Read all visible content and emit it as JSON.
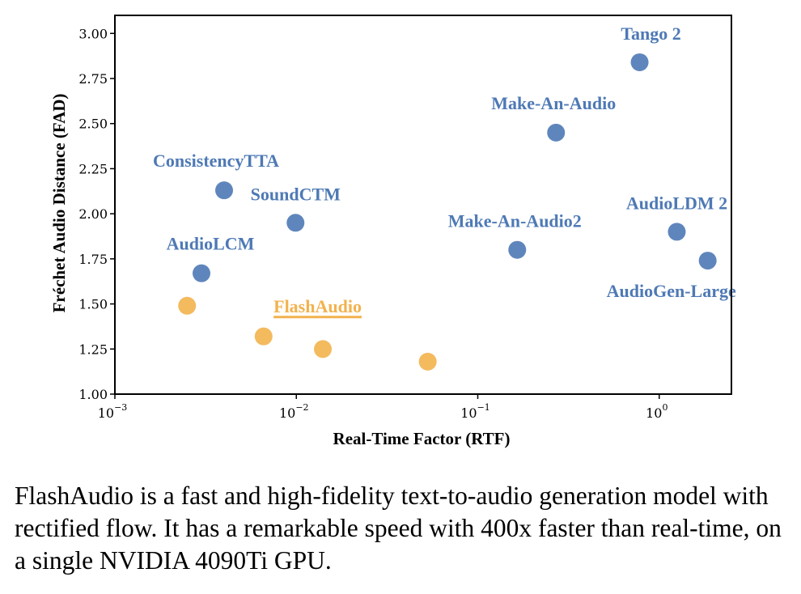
{
  "chart_data": {
    "type": "scatter",
    "xlabel": "Real-Time Factor (RTF)",
    "ylabel": "Fréchet Audio Distance (FAD)",
    "xscale": "log",
    "xlim": [
      0.001,
      2.5
    ],
    "ylim": [
      1.0,
      3.1
    ],
    "xticks": [
      0.001,
      0.01,
      0.1,
      1
    ],
    "xtick_labels": [
      {
        "base": "10",
        "exp": "−3"
      },
      {
        "base": "10",
        "exp": "−2"
      },
      {
        "base": "10",
        "exp": "−1"
      },
      {
        "base": "10",
        "exp": "0"
      }
    ],
    "yticks": [
      "1.00",
      "1.25",
      "1.50",
      "1.75",
      "2.00",
      "2.25",
      "2.50",
      "2.75",
      "3.00"
    ],
    "grid": false,
    "legend": "none",
    "colors": {
      "baseline": "#4e79b5",
      "flashaudio": "#f2b24d",
      "axis": "#000000"
    },
    "points": [
      {
        "label": "Tango 2",
        "x": 0.78,
        "y": 2.84,
        "group": "baseline",
        "label_pos": "above"
      },
      {
        "label": "Make-An-Audio",
        "x": 0.27,
        "y": 2.45,
        "group": "baseline",
        "label_pos": "above"
      },
      {
        "label": "ConsistencyTTA",
        "x": 0.004,
        "y": 2.13,
        "group": "baseline",
        "label_pos": "above-left"
      },
      {
        "label": "SoundCTM",
        "x": 0.0099,
        "y": 1.95,
        "group": "baseline",
        "label_pos": "above"
      },
      {
        "label": "AudioLDM 2",
        "x": 1.25,
        "y": 1.9,
        "group": "baseline",
        "label_pos": "above"
      },
      {
        "label": "Make-An-Audio2",
        "x": 0.165,
        "y": 1.8,
        "group": "baseline",
        "label_pos": "above"
      },
      {
        "label": "AudioLCM",
        "x": 0.003,
        "y": 1.67,
        "group": "baseline",
        "label_pos": "above"
      },
      {
        "label": "AudioGen-Large",
        "x": 1.85,
        "y": 1.74,
        "group": "baseline",
        "label_pos": "below"
      },
      {
        "label": "",
        "x": 0.0025,
        "y": 1.49,
        "group": "flashaudio"
      },
      {
        "label": "",
        "x": 0.0066,
        "y": 1.32,
        "group": "flashaudio"
      },
      {
        "label": "",
        "x": 0.014,
        "y": 1.25,
        "group": "flashaudio"
      },
      {
        "label": "",
        "x": 0.053,
        "y": 1.18,
        "group": "flashaudio"
      }
    ],
    "annotations": [
      {
        "text": "FlashAudio",
        "x": 0.0131,
        "y": 1.49,
        "group": "flashaudio",
        "underline": true
      }
    ]
  },
  "caption": "FlashAudio is a fast and high-fidelity text-to-audio generation model with rectified flow. It has a remarkable speed with 400x faster than real-time, on a single NVIDIA 4090Ti GPU."
}
